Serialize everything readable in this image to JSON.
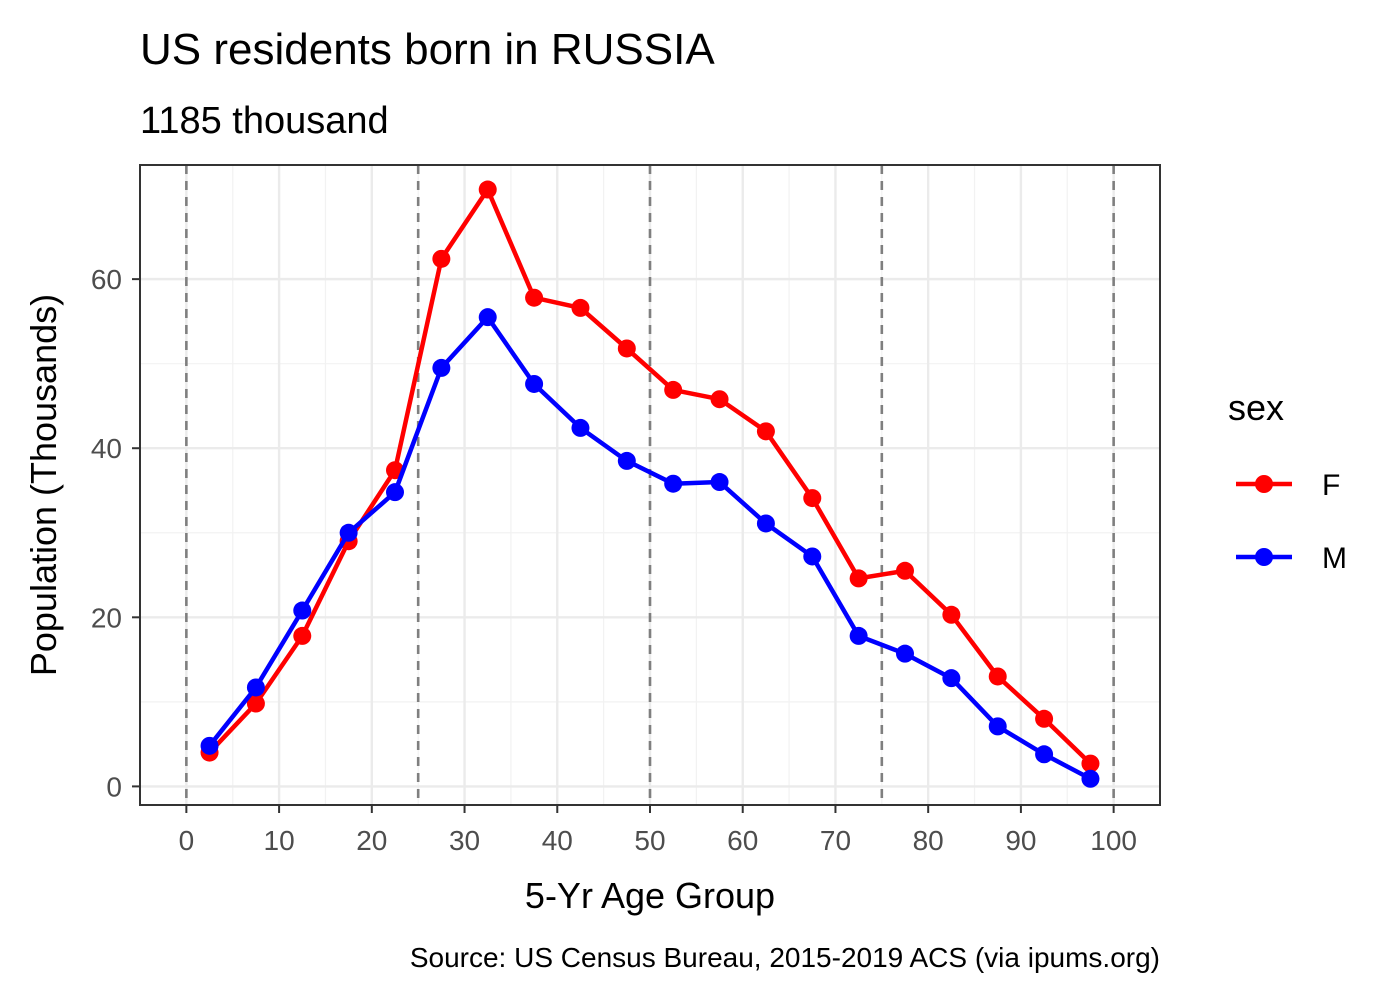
{
  "chart_data": {
    "type": "line",
    "title": "US residents born in RUSSIA",
    "subtitle": "1185 thousand",
    "xlabel": "5-Yr Age Group",
    "ylabel": "Population (Thousands)",
    "caption": "Source: US Census Bureau, 2015-2019 ACS (via ipums.org)",
    "xlim": [
      -5,
      105
    ],
    "ylim": [
      -2.2,
      73.5
    ],
    "x_ticks": [
      0,
      10,
      20,
      30,
      40,
      50,
      60,
      70,
      80,
      90,
      100
    ],
    "y_ticks": [
      0,
      20,
      40,
      60
    ],
    "grid": true,
    "reference_lines_x": [
      0,
      25,
      50,
      75,
      100
    ],
    "legend": {
      "title": "sex",
      "position": "right"
    },
    "x": [
      2.5,
      7.5,
      12.5,
      17.5,
      22.5,
      27.5,
      32.5,
      37.5,
      42.5,
      47.5,
      52.5,
      57.5,
      62.5,
      67.5,
      72.5,
      77.5,
      82.5,
      87.5,
      92.5,
      97.5
    ],
    "series": [
      {
        "name": "F",
        "color": "#ff0000",
        "values": [
          4.0,
          9.8,
          17.8,
          29.0,
          37.4,
          62.4,
          70.6,
          57.8,
          56.6,
          51.8,
          46.9,
          45.8,
          42.0,
          34.1,
          24.6,
          25.5,
          20.3,
          13.0,
          8.0,
          2.7
        ]
      },
      {
        "name": "M",
        "color": "#0000ff",
        "values": [
          4.8,
          11.7,
          20.8,
          30.0,
          34.8,
          49.5,
          55.5,
          47.6,
          42.4,
          38.5,
          35.8,
          36.0,
          31.1,
          27.2,
          17.8,
          15.7,
          12.8,
          7.1,
          3.8,
          0.9
        ]
      }
    ]
  }
}
